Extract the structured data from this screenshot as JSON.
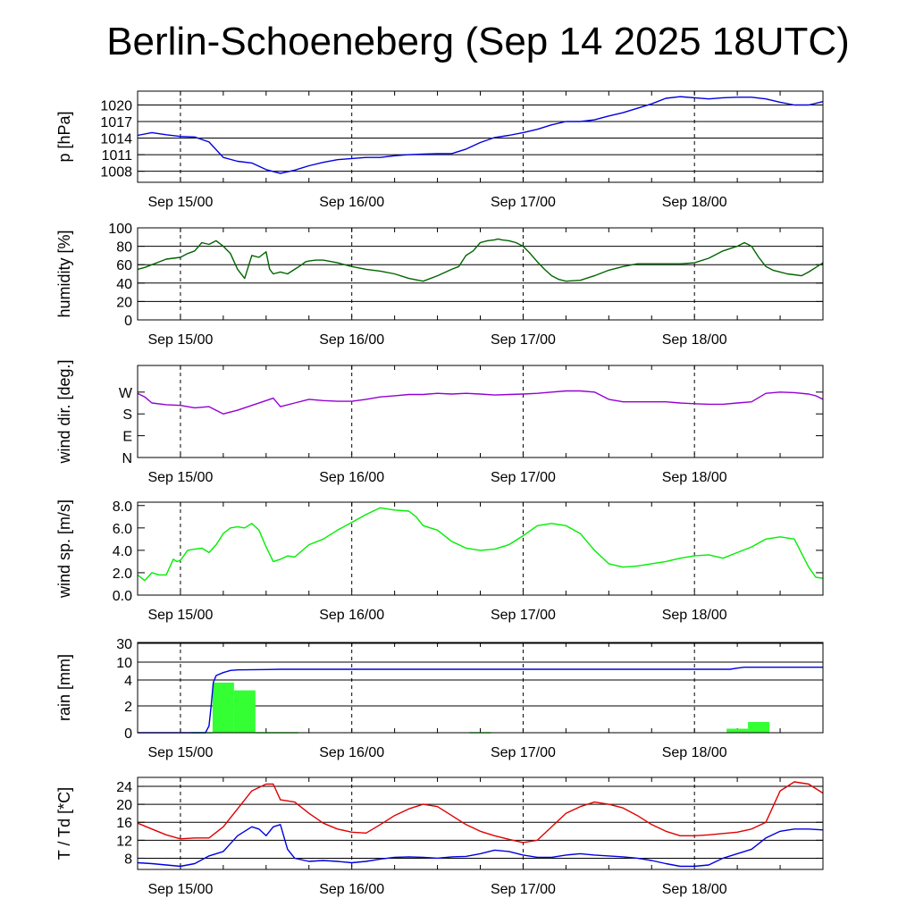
{
  "title": "Berlin-Schoeneberg (Sep 14 2025 18UTC)",
  "colors": {
    "pressure": "#0000e0",
    "humidity": "#006400",
    "wind_direction": "#9400d3",
    "wind_speed": "#00ee00",
    "rain_cumulative": "#0000e0",
    "rain_bars": "#33ff33",
    "temperature": "#e00000",
    "dewpoint": "#0000e0"
  },
  "chart_data": [
    {
      "type": "line",
      "ylabel": "p [hPa]",
      "x_ticks": [
        "Sep 15/00",
        "Sep 16/00",
        "Sep 17/00",
        "Sep 18/00"
      ],
      "xlim": [
        0,
        96
      ],
      "ylim": [
        1006,
        1022.5
      ],
      "y_ticks": [
        1008,
        1011,
        1014,
        1017,
        1020
      ],
      "y_tick_labels": [
        "1008",
        "1011",
        "1014",
        "1017",
        "1020"
      ],
      "grid": true,
      "series": [
        {
          "color_key": "pressure",
          "x": [
            0,
            2,
            4,
            6,
            8,
            10,
            12,
            14,
            16,
            18,
            20,
            22,
            24,
            26,
            28,
            30,
            32,
            34,
            36,
            38,
            40,
            42,
            44,
            46,
            48,
            50,
            52,
            54,
            56,
            58,
            60,
            62,
            64,
            66,
            68,
            70,
            72,
            74,
            76,
            78,
            80,
            82,
            84,
            86,
            88,
            90,
            92,
            94,
            96
          ],
          "y": [
            1014.5,
            1015,
            1014.6,
            1014.3,
            1014.2,
            1013.3,
            1010.5,
            1009.8,
            1009.5,
            1008.3,
            1007.6,
            1008.2,
            1009,
            1009.6,
            1010.1,
            1010.3,
            1010.5,
            1010.5,
            1010.8,
            1011,
            1011.1,
            1011.2,
            1011.2,
            1012,
            1013.2,
            1014.1,
            1014.5,
            1015,
            1015.6,
            1016.4,
            1017,
            1017,
            1017.3,
            1018,
            1018.6,
            1019.4,
            1020.2,
            1021.2,
            1021.5,
            1021.3,
            1021.1,
            1021.3,
            1021.4,
            1021.4,
            1021.1,
            1020.5,
            1020,
            1020,
            1020.6
          ]
        }
      ]
    },
    {
      "type": "line",
      "ylabel": "humidity [%]",
      "x_ticks": [
        "Sep 15/00",
        "Sep 16/00",
        "Sep 17/00",
        "Sep 18/00"
      ],
      "xlim": [
        0,
        96
      ],
      "ylim": [
        0,
        100
      ],
      "y_ticks": [
        0,
        20,
        40,
        60,
        80,
        100
      ],
      "y_tick_labels": [
        "0",
        "20",
        "40",
        "60",
        "80",
        "100"
      ],
      "grid": true,
      "series": [
        {
          "color_key": "humidity",
          "x": [
            0,
            1,
            2,
            3,
            4,
            5,
            6,
            7,
            8,
            9,
            10,
            11,
            12,
            13,
            14,
            15,
            16,
            17,
            18,
            18.5,
            19,
            20,
            21,
            22,
            23,
            23.5,
            24,
            25,
            26,
            28,
            30,
            32,
            34,
            36,
            38,
            40,
            42,
            44,
            45,
            46,
            47,
            48,
            49,
            50,
            50.5,
            51,
            52,
            53,
            54,
            55,
            56,
            57,
            58,
            59,
            60,
            62,
            64,
            66,
            68,
            70,
            72,
            74,
            76,
            78,
            80,
            82,
            84,
            85,
            86,
            87,
            88,
            89,
            90,
            91,
            92,
            93,
            94,
            95,
            96
          ],
          "y": [
            55,
            57,
            60,
            63,
            66,
            67,
            68,
            72,
            75,
            84,
            82,
            86,
            80,
            72,
            55,
            45,
            70,
            68,
            74,
            55,
            50,
            52,
            50,
            55,
            60,
            63,
            64,
            65,
            65,
            62,
            58,
            55,
            53,
            50,
            45,
            42,
            48,
            55,
            58,
            70,
            75,
            84,
            86,
            87,
            88,
            87,
            86,
            84,
            80,
            72,
            63,
            55,
            48,
            44,
            42,
            43,
            48,
            54,
            58,
            61,
            61,
            61,
            61,
            62,
            67,
            75,
            80,
            84,
            80,
            68,
            58,
            54,
            52,
            50,
            49,
            48,
            52,
            57,
            62
          ]
        }
      ]
    },
    {
      "type": "line",
      "ylabel": "wind dir. [deg.]",
      "x_ticks": [
        "Sep 15/00",
        "Sep 16/00",
        "Sep 17/00",
        "Sep 18/00"
      ],
      "xlim": [
        0,
        96
      ],
      "ylim": [
        0,
        380
      ],
      "y_ticks": [
        0,
        90,
        180,
        270
      ],
      "y_tick_labels": [
        "N",
        "E",
        "S",
        "W"
      ],
      "grid": false,
      "series": [
        {
          "color_key": "wind_direction",
          "x": [
            0,
            1,
            2,
            4,
            6,
            8,
            10,
            12,
            14,
            16,
            18,
            19,
            20,
            22,
            24,
            26,
            28,
            30,
            32,
            34,
            36,
            38,
            40,
            42,
            44,
            46,
            48,
            50,
            52,
            54,
            56,
            58,
            60,
            62,
            64,
            66,
            68,
            70,
            72,
            74,
            76,
            78,
            80,
            82,
            84,
            86,
            88,
            90,
            92,
            94,
            95,
            96
          ],
          "y": [
            265,
            250,
            225,
            218,
            215,
            205,
            210,
            180,
            195,
            215,
            235,
            245,
            210,
            225,
            240,
            235,
            232,
            232,
            240,
            250,
            255,
            260,
            260,
            265,
            262,
            265,
            262,
            258,
            260,
            262,
            265,
            270,
            275,
            275,
            270,
            240,
            230,
            230,
            230,
            230,
            225,
            222,
            220,
            220,
            225,
            230,
            265,
            270,
            268,
            262,
            255,
            240
          ]
        }
      ]
    },
    {
      "type": "line",
      "ylabel": "wind sp. [m/s]",
      "x_ticks": [
        "Sep 15/00",
        "Sep 16/00",
        "Sep 17/00",
        "Sep 18/00"
      ],
      "xlim": [
        0,
        96
      ],
      "ylim": [
        0,
        8.3
      ],
      "y_ticks": [
        0,
        2,
        4,
        6,
        8
      ],
      "y_tick_labels": [
        "0.0",
        "2.0",
        "4.0",
        "6.0",
        "8.0"
      ],
      "grid": false,
      "series": [
        {
          "color_key": "wind_speed",
          "x": [
            0,
            1,
            2,
            3,
            4,
            5,
            5.5,
            6,
            7,
            8,
            9,
            10,
            11,
            12,
            13,
            14,
            15,
            16,
            17,
            18,
            19,
            20,
            21,
            22,
            24,
            26,
            28,
            30,
            32,
            34,
            36,
            38,
            39,
            40,
            42,
            44,
            46,
            48,
            50,
            52,
            54,
            56,
            58,
            60,
            62,
            64,
            66,
            68,
            70,
            72,
            74,
            76,
            78,
            80,
            82,
            84,
            86,
            88,
            90,
            92,
            94,
            95,
            96
          ],
          "y": [
            1.8,
            1.3,
            2.0,
            1.8,
            1.8,
            3.2,
            3.0,
            3.1,
            4.0,
            4.1,
            4.2,
            3.8,
            4.5,
            5.5,
            6.0,
            6.1,
            6.0,
            6.4,
            5.8,
            4.3,
            3.0,
            3.2,
            3.5,
            3.4,
            4.5,
            5.0,
            5.8,
            6.5,
            7.2,
            7.8,
            7.6,
            7.5,
            7.0,
            6.2,
            5.8,
            4.8,
            4.2,
            4.0,
            4.1,
            4.5,
            5.3,
            6.2,
            6.4,
            6.2,
            5.5,
            4.0,
            2.8,
            2.5,
            2.6,
            2.8,
            3.0,
            3.3,
            3.5,
            3.6,
            3.3,
            3.8,
            4.3,
            5.0,
            5.2,
            5.0,
            2.5,
            1.6,
            1.5
          ]
        }
      ]
    },
    {
      "type": "bar",
      "ylabel": "rain [mm]",
      "x_ticks": [
        "Sep 15/00",
        "Sep 16/00",
        "Sep 17/00",
        "Sep 18/00"
      ],
      "xlim": [
        0,
        96
      ],
      "y_ticks": [
        0,
        2,
        4,
        10,
        30
      ],
      "y_tick_labels": [
        "0",
        "2",
        "4",
        "10",
        "30"
      ],
      "grid": true,
      "bars": {
        "color_key": "rain_bars",
        "x_start": [
          7.5,
          10.5,
          13.5,
          16.5,
          19.5,
          46.5,
          82.5,
          85.5
        ],
        "x_end": [
          10.5,
          13.5,
          16.5,
          19.5,
          22.5,
          49.5,
          85.5,
          88.5
        ],
        "values": [
          0.05,
          3.8,
          3.2,
          0.05,
          0.05,
          0.05,
          0.3,
          0.8
        ]
      },
      "series": [
        {
          "color_key": "rain_cumulative",
          "x": [
            0,
            9.5,
            10,
            10.3,
            10.6,
            11,
            12,
            13,
            14,
            18,
            20,
            30,
            40,
            50,
            60,
            70,
            78,
            83,
            84,
            85,
            90,
            96
          ],
          "y": [
            0,
            0,
            0.5,
            2.0,
            3.8,
            5.5,
            6.5,
            7.2,
            7.4,
            7.5,
            7.6,
            7.6,
            7.6,
            7.6,
            7.6,
            7.6,
            7.6,
            7.6,
            8.0,
            8.3,
            8.3,
            8.3
          ]
        }
      ]
    },
    {
      "type": "line",
      "ylabel": "T / Td [*C]",
      "x_ticks": [
        "Sep 15/00",
        "Sep 16/00",
        "Sep 17/00",
        "Sep 18/00"
      ],
      "xlim": [
        0,
        96
      ],
      "ylim": [
        5.5,
        26
      ],
      "y_ticks": [
        8,
        12,
        16,
        20,
        24
      ],
      "y_tick_labels": [
        "8",
        "12",
        "16",
        "20",
        "24"
      ],
      "grid": true,
      "series": [
        {
          "color_key": "temperature",
          "x": [
            0,
            2,
            4,
            6,
            8,
            10,
            12,
            14,
            16,
            18,
            19,
            20,
            22,
            24,
            26,
            28,
            30,
            32,
            34,
            36,
            38,
            40,
            42,
            44,
            46,
            48,
            50,
            52,
            54,
            56,
            58,
            60,
            62,
            64,
            66,
            68,
            70,
            72,
            74,
            76,
            78,
            80,
            82,
            84,
            86,
            88,
            90,
            92,
            94,
            96
          ],
          "y": [
            15.8,
            14.5,
            13.2,
            12.3,
            12.5,
            12.5,
            15,
            19,
            23,
            24.5,
            24.5,
            21,
            20.5,
            18,
            15.8,
            14.5,
            13.8,
            13.6,
            15.5,
            17.5,
            19,
            20,
            19.5,
            17.5,
            15.5,
            14,
            13,
            12.2,
            11.5,
            12,
            15,
            18,
            19.5,
            20.5,
            20,
            19.2,
            17.5,
            15.5,
            14,
            13,
            13,
            13.2,
            13.5,
            13.8,
            14.5,
            16,
            23,
            25,
            24.5,
            22.5
          ]
        },
        {
          "color_key": "dewpoint",
          "x": [
            0,
            2,
            4,
            6,
            8,
            10,
            12,
            14,
            16,
            17,
            18,
            19,
            20,
            21,
            22,
            24,
            26,
            28,
            30,
            32,
            34,
            36,
            38,
            40,
            42,
            44,
            46,
            48,
            50,
            52,
            54,
            56,
            58,
            60,
            62,
            64,
            66,
            68,
            70,
            72,
            74,
            76,
            78,
            80,
            82,
            84,
            86,
            88,
            90,
            92,
            94,
            96
          ],
          "y": [
            7,
            6.8,
            6.5,
            6.2,
            6.8,
            8.5,
            9.5,
            13,
            15,
            14.5,
            13,
            15,
            15.5,
            10,
            8,
            7.3,
            7.5,
            7.3,
            7,
            7.3,
            7.8,
            8.2,
            8.3,
            8.2,
            8,
            8.3,
            8.4,
            9,
            9.8,
            9.5,
            8.7,
            8.2,
            8.2,
            8.7,
            9,
            8.7,
            8.5,
            8.3,
            8,
            7.5,
            6.8,
            6.2,
            6.2,
            6.5,
            8,
            9,
            10,
            12.5,
            14,
            14.5,
            14.5,
            14.3
          ]
        }
      ]
    }
  ]
}
